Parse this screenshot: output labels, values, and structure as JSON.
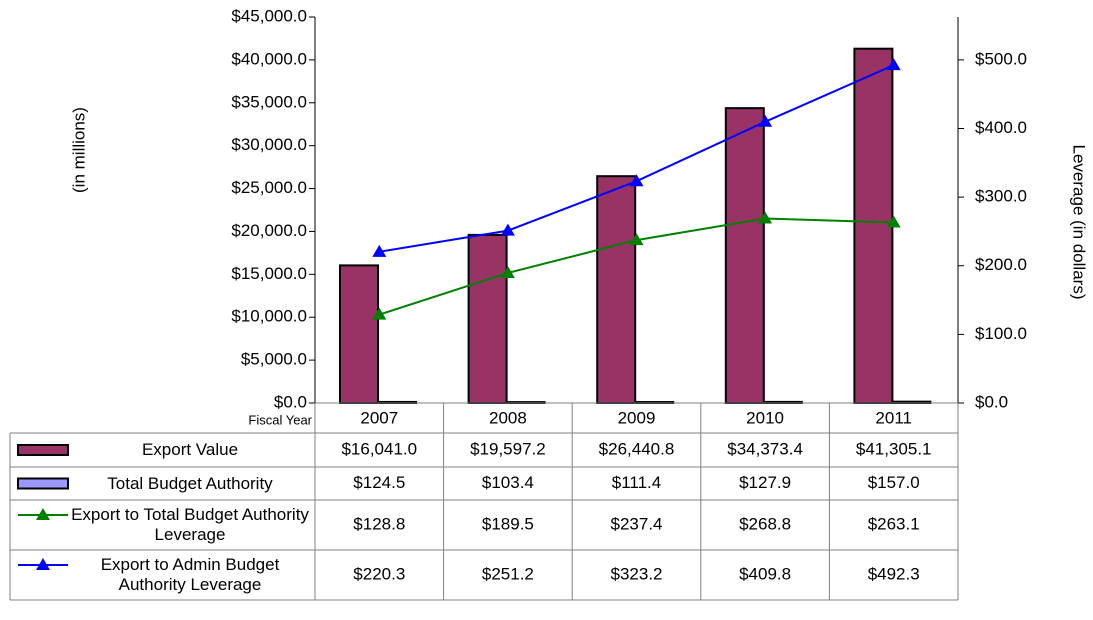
{
  "chart_data": {
    "type": "bar",
    "xlabel": "Fiscal Year",
    "ylabel": "(in millions)",
    "y2label": "Leverage (in dollars)",
    "categories": [
      "2007",
      "2008",
      "2009",
      "2010",
      "2011"
    ],
    "ylim": [
      0,
      45000
    ],
    "yticks": [
      {
        "value": 0,
        "label": "$0.0"
      },
      {
        "value": 5000,
        "label": "$5,000.0"
      },
      {
        "value": 10000,
        "label": "$10,000.0"
      },
      {
        "value": 15000,
        "label": "$15,000.0"
      },
      {
        "value": 20000,
        "label": "$20,000.0"
      },
      {
        "value": 25000,
        "label": "$25,000.0"
      },
      {
        "value": 30000,
        "label": "$30,000.0"
      },
      {
        "value": 35000,
        "label": "$35,000.0"
      },
      {
        "value": 40000,
        "label": "$40,000.0"
      },
      {
        "value": 45000,
        "label": "$45,000.0"
      }
    ],
    "y2lim": [
      0,
      562.5
    ],
    "y2ticks": [
      {
        "value": 0,
        "label": "$0.0"
      },
      {
        "value": 100,
        "label": "$100.0"
      },
      {
        "value": 200,
        "label": "$200.0"
      },
      {
        "value": 300,
        "label": "$300.0"
      },
      {
        "value": 400,
        "label": "$400.0"
      },
      {
        "value": 500,
        "label": "$500.0"
      }
    ],
    "grid": false,
    "series": [
      {
        "name": "Export Value",
        "type": "bar",
        "color": "#993366",
        "values": [
          16041.0,
          19597.2,
          26440.8,
          34373.4,
          41305.1
        ],
        "value_labels": [
          "$16,041.0",
          "$19,597.2",
          "$26,440.8",
          "$34,373.4",
          "$41,305.1"
        ]
      },
      {
        "name": "Total Budget Authority",
        "type": "bar",
        "color": "#9999ff",
        "values": [
          124.5,
          103.4,
          111.4,
          127.9,
          157.0
        ],
        "value_labels": [
          "$124.5",
          "$103.4",
          "$111.4",
          "$127.9",
          "$157.0"
        ]
      },
      {
        "name": "Export to Total Budget Authority Leverage",
        "type": "line",
        "axis": "y2",
        "color": "#008000",
        "values": [
          128.8,
          189.5,
          237.4,
          268.8,
          263.1
        ],
        "value_labels": [
          "$128.8",
          "$189.5",
          "$237.4",
          "$268.8",
          "$263.1"
        ]
      },
      {
        "name": "Export to Admin Budget Authority Leverage",
        "type": "line",
        "axis": "y2",
        "color": "#0000ff",
        "values": [
          220.3,
          251.2,
          323.2,
          409.8,
          492.3
        ],
        "value_labels": [
          "$220.3",
          "$251.2",
          "$323.2",
          "$409.8",
          "$492.3"
        ]
      }
    ]
  }
}
